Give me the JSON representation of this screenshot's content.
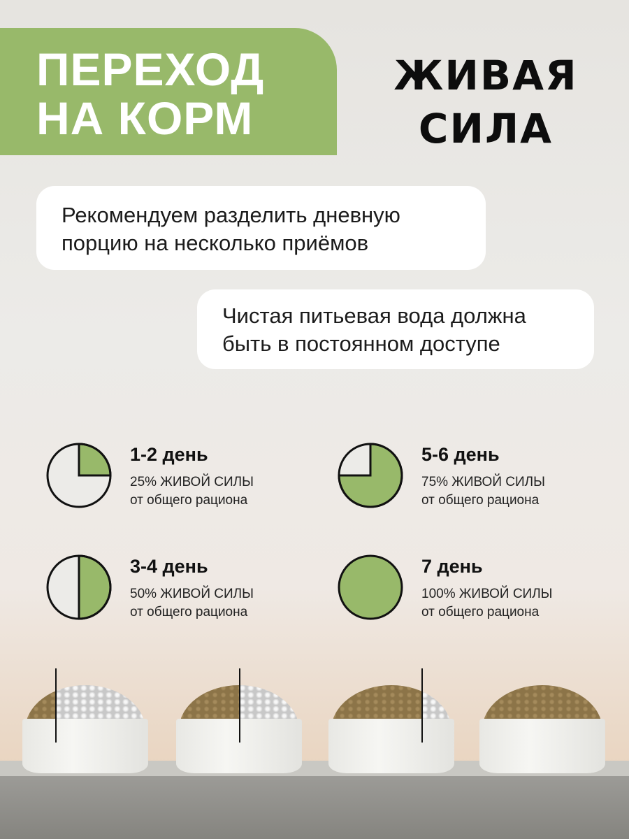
{
  "header": {
    "title_line1": "ПЕРЕХОД",
    "title_line2": "НА КОРМ"
  },
  "brand": {
    "line1": "ЖИВАЯ",
    "line2": "СИЛА"
  },
  "tips": [
    {
      "line1": "Рекомендуем разделить дневную",
      "line2": "порцию на несколько приёмов"
    },
    {
      "line1": "Чистая питьевая вода должна",
      "line2": "быть в постоянном доступе"
    }
  ],
  "colors": {
    "accent": "#98b96a",
    "pie_empty": "#ecebe8"
  },
  "steps": [
    {
      "title": "1-2 день",
      "line1": "25% ЖИВОЙ СИЛЫ",
      "line2": "от общего рациона",
      "fraction": 0.25
    },
    {
      "title": "3-4 день",
      "line1": "50% ЖИВОЙ СИЛЫ",
      "line2": "от общего рациона",
      "fraction": 0.5
    },
    {
      "title": "5-6 день",
      "line1": "75% ЖИВОЙ СИЛЫ",
      "line2": "от общего рациона",
      "fraction": 0.75
    },
    {
      "title": "7 день",
      "line1": "100% ЖИВОЙ СИЛЫ",
      "line2": "от общего рациона",
      "fraction": 1.0
    }
  ],
  "bowls": [
    {
      "fraction": 0.25
    },
    {
      "fraction": 0.5
    },
    {
      "fraction": 0.75
    },
    {
      "fraction": 1.0
    }
  ]
}
